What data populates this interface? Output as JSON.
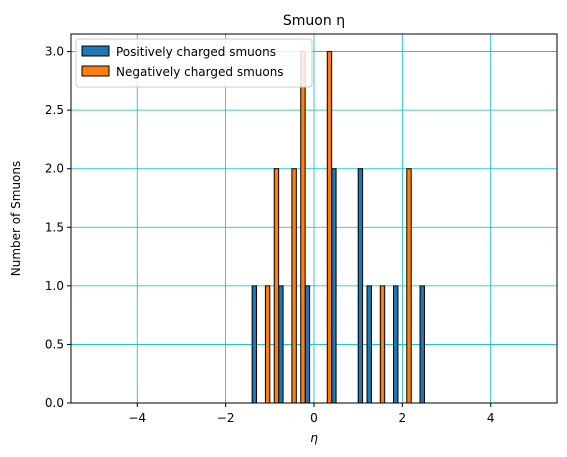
{
  "chart_data": {
    "type": "bar",
    "title": "Smuon η",
    "xlabel": "η",
    "ylabel": "Number of Smuons",
    "xlim": [
      -5.5,
      5.5
    ],
    "ylim": [
      0,
      3.15
    ],
    "xticks": [
      -4,
      -2,
      0,
      2,
      4
    ],
    "xtick_labels": [
      "−4",
      "−2",
      "0",
      "2",
      "4"
    ],
    "yticks": [
      0,
      0.5,
      1,
      1.5,
      2,
      2.5,
      3
    ],
    "ytick_labels": [
      "0.0",
      "0.5",
      "1.0",
      "1.5",
      "2.0",
      "2.5",
      "3.0"
    ],
    "grid": true,
    "grid_color": "#00bfbf",
    "legend_position": "top-left",
    "bins": {
      "start": -5,
      "end": 5,
      "count": 50
    },
    "series": [
      {
        "name": "Positively charged smuons",
        "color": "#1f77b4",
        "values": [
          0,
          0,
          0,
          0,
          0,
          0,
          0,
          0,
          0,
          0,
          0,
          0,
          0,
          0,
          0,
          0,
          0,
          0,
          1,
          0,
          0,
          1,
          0,
          0,
          1,
          0,
          0,
          2,
          0,
          0,
          2,
          1,
          0,
          0,
          1,
          0,
          0,
          1,
          0,
          0,
          0,
          0,
          0,
          0,
          0,
          0,
          0,
          0,
          0,
          0
        ]
      },
      {
        "name": "Negatively charged smuons",
        "color": "#ff7f0e",
        "values": [
          0,
          0,
          0,
          0,
          0,
          0,
          0,
          0,
          0,
          0,
          0,
          0,
          0,
          0,
          0,
          0,
          0,
          0,
          0,
          1,
          2,
          0,
          2,
          3,
          0,
          0,
          3,
          0,
          0,
          0,
          0,
          0,
          1,
          0,
          0,
          2,
          0,
          0,
          0,
          0,
          0,
          0,
          0,
          0,
          0,
          0,
          0,
          0,
          0,
          0
        ]
      }
    ]
  }
}
